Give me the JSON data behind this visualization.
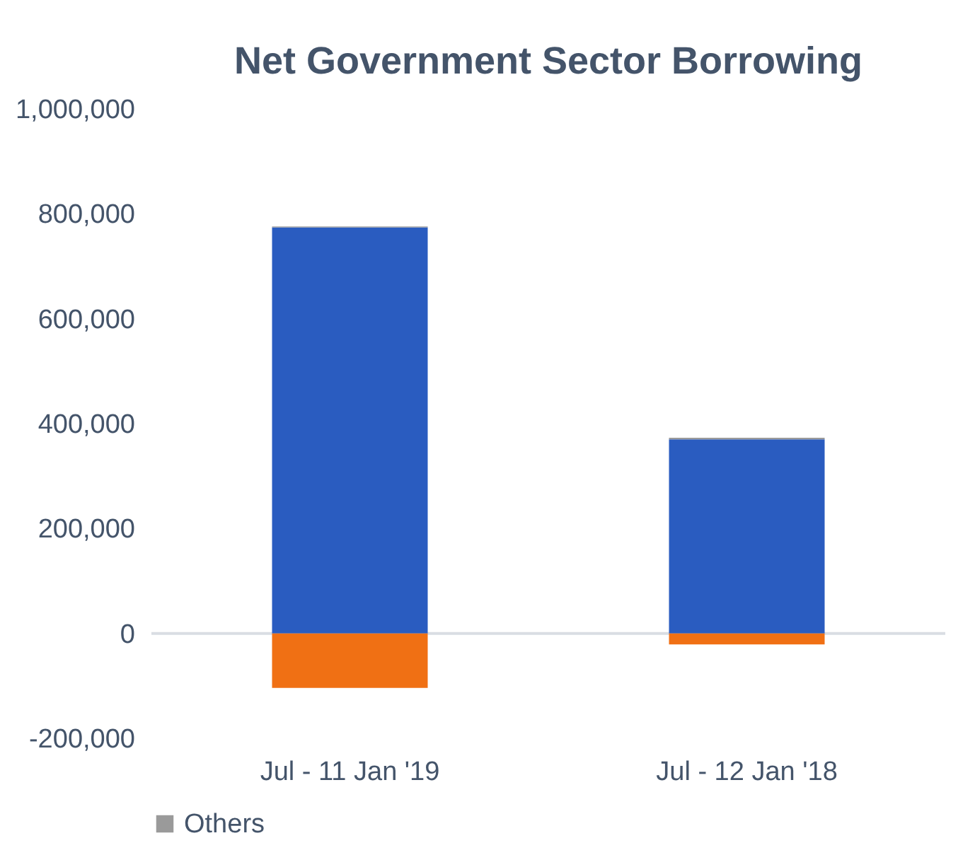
{
  "chart_data": {
    "type": "bar",
    "title": "Net Government Sector Borrowing",
    "stacked": true,
    "categories": [
      "Jul - 11 Jan '19",
      "Jul - 12 Jan '18"
    ],
    "series": [
      {
        "color": "#2a5cc0",
        "values": [
          774000,
          370000
        ]
      },
      {
        "color": "#f07014",
        "values": [
          -104000,
          -21000
        ]
      },
      {
        "name": "Others",
        "color": "#9a9a9a",
        "values": [
          2000,
          3000
        ]
      }
    ],
    "ylim": [
      -200000,
      1000000
    ],
    "yticks": [
      {
        "value": -200000,
        "label": "-200,000"
      },
      0,
      {
        "value": 200000,
        "label": "200,000"
      },
      {
        "value": 400000,
        "label": "400,000"
      },
      {
        "value": 600000,
        "label": "600,000"
      },
      {
        "value": 800000,
        "label": "800,000"
      },
      {
        "value": 1000000,
        "label": "1,000,000"
      }
    ],
    "legend": "bottom"
  }
}
